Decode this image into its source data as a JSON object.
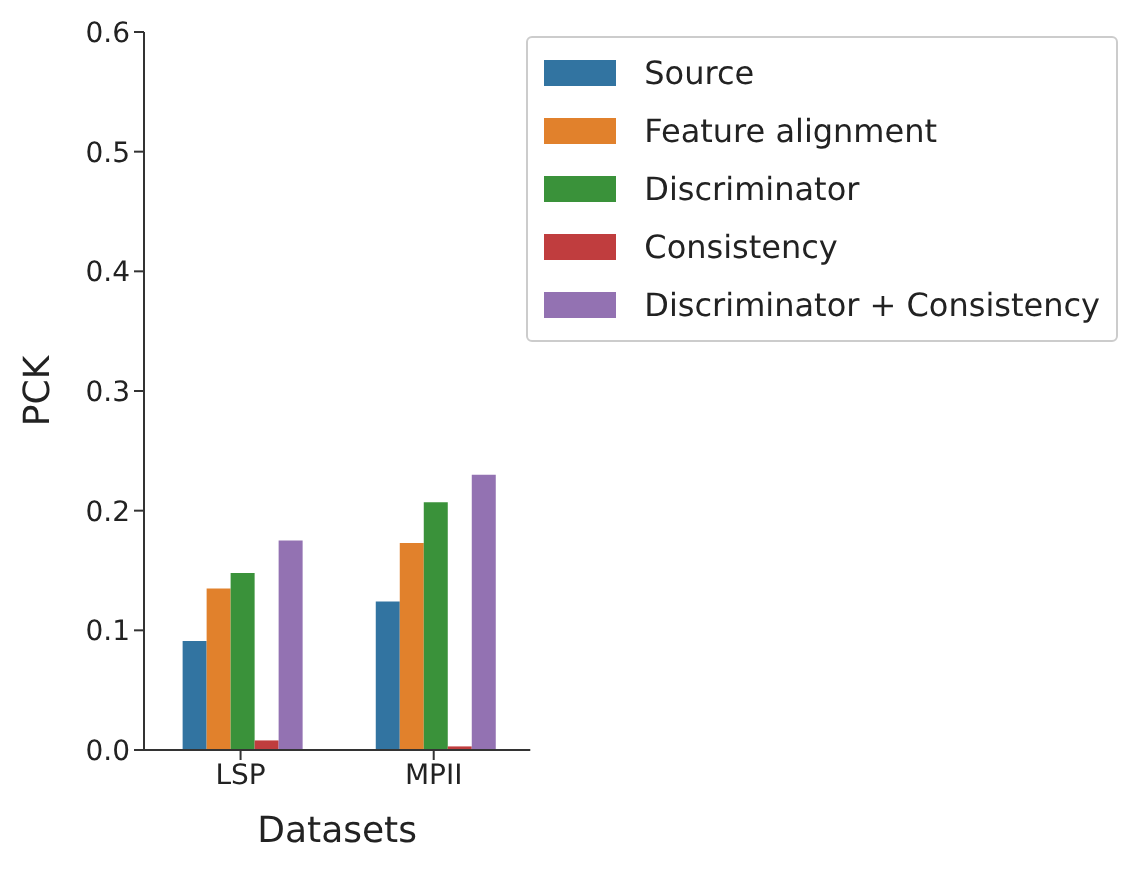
{
  "chart_data": {
    "type": "bar",
    "xlabel": "Datasets",
    "ylabel": "PCK",
    "categories": [
      "LSP",
      "MPII"
    ],
    "series": [
      {
        "name": "Source",
        "color": "#3274a1",
        "values": [
          0.091,
          0.124
        ]
      },
      {
        "name": "Feature alignment",
        "color": "#e1812c",
        "values": [
          0.135,
          0.173
        ]
      },
      {
        "name": "Discriminator",
        "color": "#3a923a",
        "values": [
          0.148,
          0.207
        ]
      },
      {
        "name": "Consistency",
        "color": "#c03d3e",
        "values": [
          0.008,
          0.003
        ]
      },
      {
        "name": "Discriminator + Consistency",
        "color": "#9372b2",
        "values": [
          0.175,
          0.23
        ]
      }
    ],
    "ylim": [
      0,
      0.6
    ],
    "yticks": [
      {
        "value": 0,
        "label": "0.0"
      },
      {
        "value": 0.1,
        "label": "0.1"
      },
      {
        "value": 0.2,
        "label": "0.2"
      },
      {
        "value": 0.3,
        "label": "0.3"
      },
      {
        "value": 0.4,
        "label": "0.4"
      },
      {
        "value": 0.5,
        "label": "0.5"
      },
      {
        "value": 0.6,
        "label": "0.6"
      }
    ],
    "grid": false,
    "legend": "top right"
  }
}
